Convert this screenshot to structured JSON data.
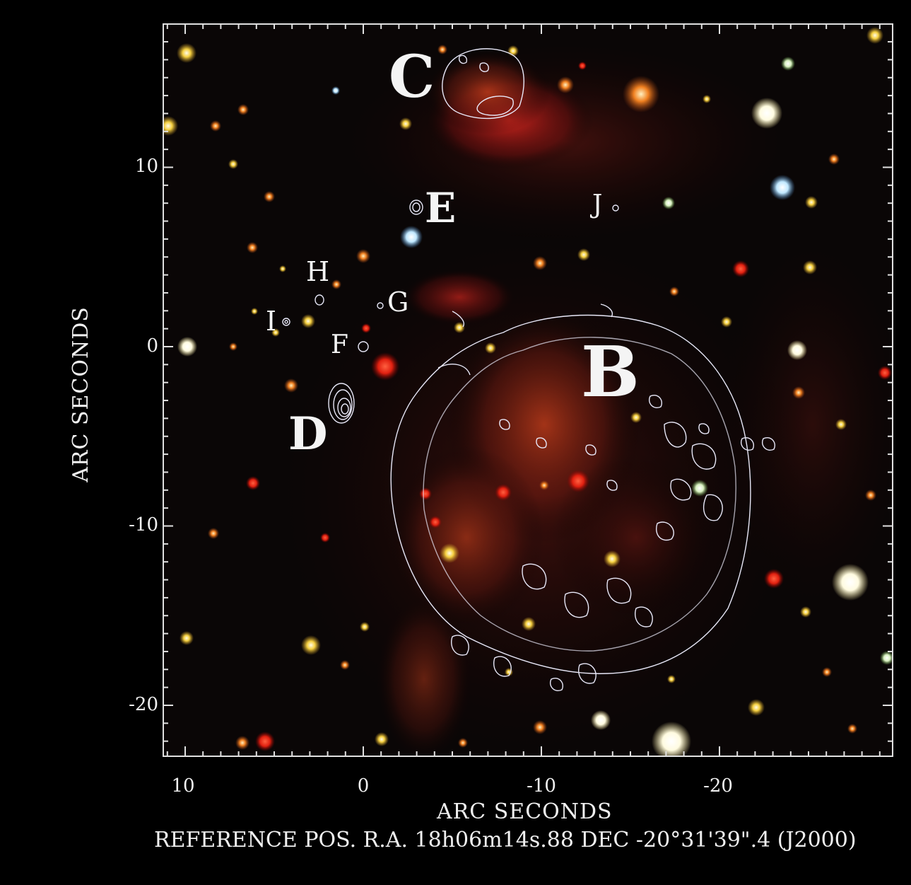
{
  "axes": {
    "x_ticks": [
      "10",
      "0",
      "-10",
      "-20"
    ],
    "y_ticks": [
      "10",
      "0",
      "-10",
      "-20"
    ],
    "x_label": "ARC SECONDS",
    "y_label": "ARC SECONDS",
    "reference": "REFERENCE POS.  R.A. 18h06m14s.88  DEC  -20°31'39\".4  (J2000)"
  },
  "labels": {
    "B": "B",
    "C": "C",
    "D": "D",
    "E": "E",
    "F": "F",
    "G": "G",
    "H": "H",
    "I": "I",
    "J": "J"
  },
  "colors": {
    "background": "#000000",
    "nebula": "#c8281e",
    "contour": "#e8e8f8",
    "axis": "#e0e0e0"
  }
}
